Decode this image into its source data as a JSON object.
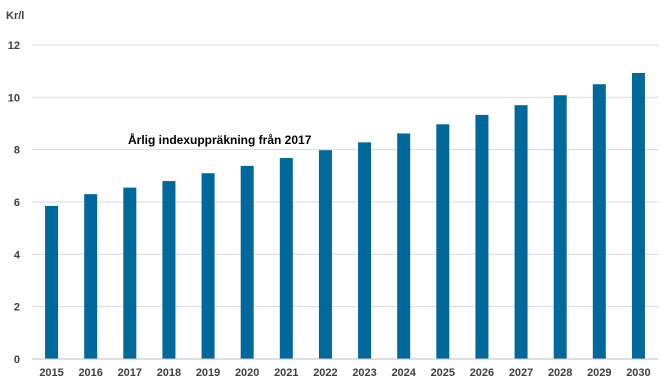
{
  "chart_data": {
    "type": "bar",
    "title": "",
    "xlabel": "",
    "ylabel": "Kr/l",
    "annotation": "Årlig indexuppräkning från 2017",
    "categories": [
      "2015",
      "2016",
      "2017",
      "2018",
      "2019",
      "2020",
      "2021",
      "2022",
      "2023",
      "2024",
      "2025",
      "2026",
      "2027",
      "2028",
      "2029",
      "2030"
    ],
    "values": [
      5.85,
      6.3,
      6.55,
      6.8,
      7.1,
      7.38,
      7.68,
      7.98,
      8.28,
      8.62,
      8.97,
      9.33,
      9.7,
      10.08,
      10.5,
      10.93
    ],
    "ylim": [
      0,
      12
    ],
    "yticks": [
      0,
      2,
      4,
      6,
      8,
      10,
      12
    ],
    "grid": true,
    "legend": "none",
    "bar_color": "#00689b"
  }
}
